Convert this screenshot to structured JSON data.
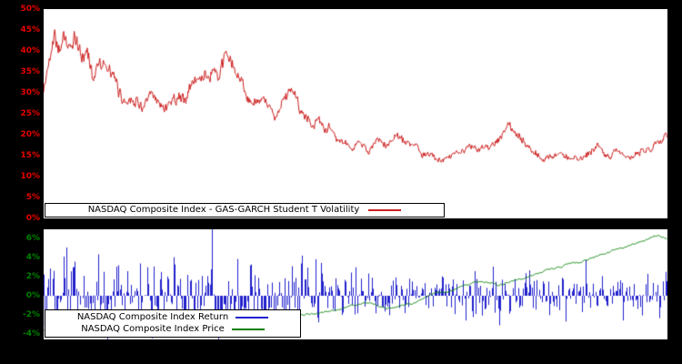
{
  "page": {
    "background": "#000000",
    "plot_background": "#ffffff"
  },
  "chart_data": [
    {
      "type": "line",
      "legend": "NASDAQ Composite Index - GAS-GARCH Student T Volatility",
      "color": "#cc2020",
      "tick_color": "#e60000",
      "ylim": [
        0,
        50
      ],
      "ytick_values": [
        0,
        5,
        10,
        15,
        20,
        25,
        30,
        35,
        40,
        45,
        50
      ],
      "ytick_labels": [
        "0%",
        "5%",
        "10%",
        "15%",
        "20%",
        "25%",
        "30%",
        "35%",
        "40%",
        "45%",
        "50%"
      ],
      "grid": false,
      "legend_position": "bottom-left",
      "samples": 900,
      "seed": 42,
      "keypoints_x": [
        0,
        0.008,
        0.018,
        0.025,
        0.032,
        0.04,
        0.05,
        0.06,
        0.07,
        0.08,
        0.09,
        0.1,
        0.11,
        0.12,
        0.13,
        0.145,
        0.16,
        0.175,
        0.19,
        0.21,
        0.225,
        0.24,
        0.25,
        0.262,
        0.272,
        0.283,
        0.295,
        0.31,
        0.325,
        0.34,
        0.355,
        0.37,
        0.385,
        0.4,
        0.415,
        0.43,
        0.445,
        0.46,
        0.475,
        0.49,
        0.505,
        0.52,
        0.535,
        0.55,
        0.565,
        0.58,
        0.6,
        0.62,
        0.64,
        0.66,
        0.68,
        0.7,
        0.715,
        0.73,
        0.745,
        0.755,
        0.77,
        0.785,
        0.8,
        0.815,
        0.83,
        0.845,
        0.86,
        0.875,
        0.89,
        0.905,
        0.92,
        0.935,
        0.95,
        0.965,
        0.975,
        0.985,
        1.0
      ],
      "keypoints_y": [
        30,
        37,
        46,
        42,
        44,
        40,
        43,
        38,
        40,
        34,
        39,
        36,
        33,
        30,
        28,
        30,
        27,
        29,
        26,
        30,
        28,
        32,
        34,
        33,
        37,
        34,
        39,
        33,
        29,
        27,
        26,
        25,
        28,
        30,
        26,
        24,
        23,
        21,
        19,
        17,
        18,
        16,
        18,
        17,
        20,
        18,
        16,
        15,
        14,
        16,
        17,
        16,
        18,
        20,
        22,
        20,
        18,
        16,
        14,
        15,
        16,
        14,
        15,
        16,
        17,
        15,
        16,
        14,
        15,
        16,
        17,
        19,
        21
      ]
    },
    {
      "type": "bar+line",
      "series": [
        {
          "name": "NASDAQ Composite Index Return",
          "type": "bar",
          "color": "#2020cc"
        },
        {
          "name": "NASDAQ Composite Index Price",
          "type": "line",
          "color": "#007f00"
        }
      ],
      "tick_color": "#008000",
      "ylim": [
        -4.6,
        7.0
      ],
      "ytick_values": [
        -4,
        -2,
        0,
        2,
        4,
        6
      ],
      "ytick_labels": [
        "-4%",
        "-2%",
        "0%",
        "2%",
        "4%",
        "6%"
      ],
      "grid": false,
      "legend_position": "bottom-left",
      "bars": 500,
      "seed": 1234,
      "return_scale_divisor": 15,
      "outliers": [
        {
          "x": 0.27,
          "value": 7.0
        },
        {
          "x": 0.285,
          "value": -4.3
        },
        {
          "x": 0.02,
          "value": -3.4
        },
        {
          "x": 0.05,
          "value": 3.6
        },
        {
          "x": 0.1,
          "value": -3.2
        },
        {
          "x": 0.155,
          "value": 3.4
        },
        {
          "x": 0.21,
          "value": 3.3
        },
        {
          "x": 0.24,
          "value": -3.0
        },
        {
          "x": 0.33,
          "value": 3.2
        },
        {
          "x": 0.44,
          "value": -2.8
        },
        {
          "x": 0.5,
          "value": 3.0
        },
        {
          "x": 0.87,
          "value": 3.8
        },
        {
          "x": 0.93,
          "value": -2.6
        }
      ],
      "price_seed": 77,
      "price_x": [
        0,
        0.05,
        0.1,
        0.15,
        0.2,
        0.25,
        0.3,
        0.33,
        0.36,
        0.4,
        0.44,
        0.48,
        0.5,
        0.53,
        0.56,
        0.6,
        0.63,
        0.66,
        0.7,
        0.73,
        0.76,
        0.8,
        0.83,
        0.86,
        0.9,
        0.93,
        0.96,
        0.98,
        1.0
      ],
      "price_y": [
        -3.6,
        -3.4,
        -3.5,
        -3.3,
        -3.4,
        -3.2,
        -3.3,
        -3.0,
        -2.6,
        -2.2,
        -1.8,
        -1.4,
        -1.2,
        -0.8,
        -1.3,
        -0.5,
        0.2,
        0.8,
        1.4,
        1.1,
        1.8,
        2.6,
        3.0,
        3.6,
        4.4,
        5.0,
        5.8,
        6.4,
        6.1
      ]
    }
  ]
}
